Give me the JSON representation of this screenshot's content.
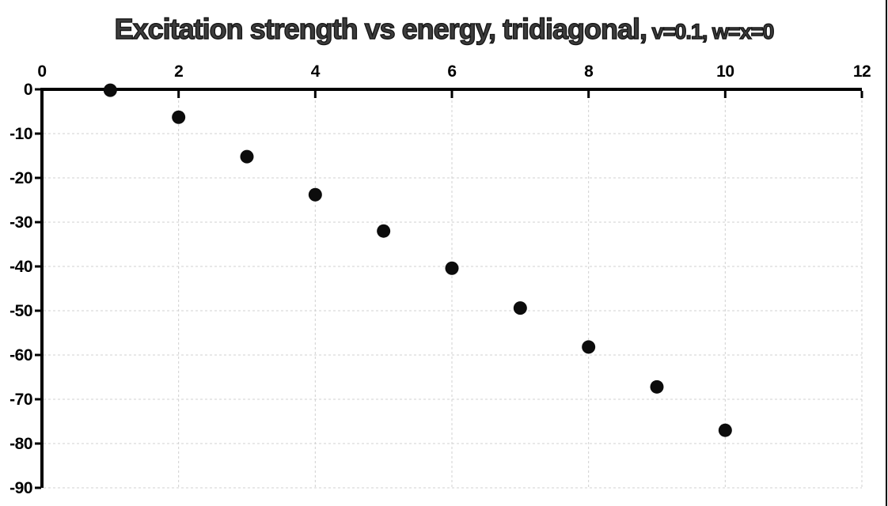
{
  "window": {
    "background": "#ffffff",
    "right_edge_border_color": "#000000"
  },
  "chart_data": {
    "type": "scatter",
    "title": "Excitation strength vs energy, tridiagonal, v=0.1, w=x=0",
    "title_main": "Excitation strength vs energy, tridiagonal,",
    "title_suffix": " v=0.1, w=x=0",
    "xlabel": "",
    "ylabel": "",
    "x_axis_side": "top",
    "xlim": [
      0,
      12
    ],
    "ylim": [
      -90,
      0
    ],
    "x_ticks": [
      0,
      2,
      4,
      6,
      8,
      10,
      12
    ],
    "y_ticks": [
      0,
      -10,
      -20,
      -30,
      -40,
      -50,
      -60,
      -70,
      -80,
      -90
    ],
    "grid": true,
    "gridline_style": "dashed",
    "legend": "none",
    "series": [
      {
        "name": "excitation strength",
        "marker": "circle",
        "marker_color": "#0c0c0c",
        "x": [
          1,
          2,
          3,
          4,
          5,
          6,
          7,
          8,
          9,
          10
        ],
        "y": [
          -0.2,
          -6.3,
          -15.2,
          -23.8,
          -32.0,
          -40.4,
          -49.4,
          -58.2,
          -67.2,
          -77.0
        ]
      }
    ],
    "colors": {
      "background": "#ffffff",
      "gridline": "#d0d0d0",
      "axis": "#000000",
      "tick_label": "#000000",
      "title_fill": "#3d3d3d",
      "title_outline": "#161616"
    }
  }
}
